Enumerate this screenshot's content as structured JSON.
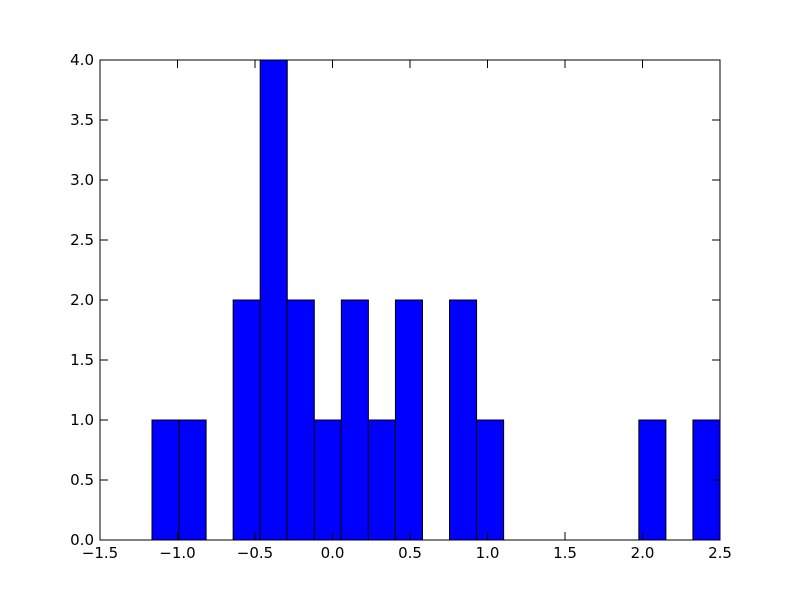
{
  "chart_data": {
    "type": "histogram",
    "bins": [
      -1.1645,
      -0.99,
      -0.8155,
      -0.641,
      -0.4665,
      -0.292,
      -0.1175,
      0.057,
      0.2315,
      0.406,
      0.5805,
      0.755,
      0.9295,
      1.104,
      1.2785,
      1.453,
      1.6275,
      1.802,
      1.9765,
      2.151,
      2.3255,
      2.5
    ],
    "values": [
      1,
      1,
      0,
      2,
      4,
      2,
      1,
      2,
      1,
      2,
      0,
      2,
      1,
      0,
      0,
      0,
      0,
      0,
      1,
      0,
      1
    ],
    "color": "#0000ff",
    "edgecolor": "#000000",
    "xlim": [
      -1.5,
      2.5
    ],
    "xticks": [
      {
        "value": -1.5,
        "label": "−1.5"
      },
      {
        "value": -1.0,
        "label": "−1.0"
      },
      {
        "value": -0.5,
        "label": "−0.5"
      },
      {
        "value": 0,
        "label": "0.0"
      },
      0.5,
      {
        "value": 1,
        "label": "1.0"
      },
      1.5,
      {
        "value": 2,
        "label": "2.0"
      },
      2.5
    ],
    "ylim": [
      0,
      4
    ],
    "yticks": [
      {
        "value": 0,
        "label": "0.0"
      },
      0.5,
      {
        "value": 1,
        "label": "1.0"
      },
      1.5,
      {
        "value": 2,
        "label": "2.0"
      },
      2.5,
      {
        "value": 3,
        "label": "3.0"
      },
      3.5,
      {
        "value": 4,
        "label": "4.0"
      }
    ],
    "grid": false
  }
}
